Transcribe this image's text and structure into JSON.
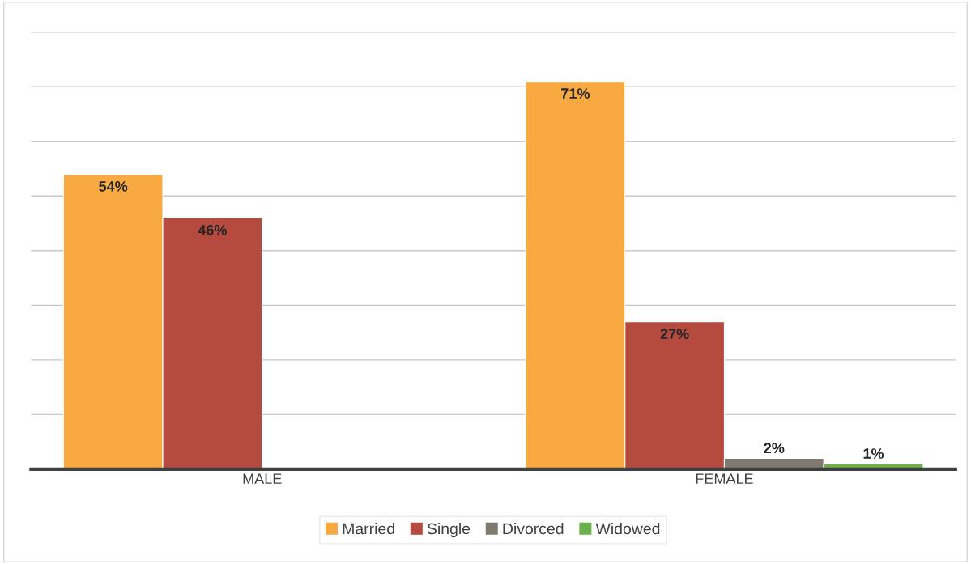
{
  "chart_data": {
    "type": "bar",
    "categories": [
      "MALE",
      "FEMALE"
    ],
    "series": [
      {
        "name": "Married",
        "color": "#f9a942",
        "values": [
          54,
          71
        ],
        "value_labels": [
          "54%",
          "71%"
        ]
      },
      {
        "name": "Single",
        "color": "#b54a3f",
        "values": [
          46,
          27
        ],
        "value_labels": [
          "46%",
          "27%"
        ]
      },
      {
        "name": "Divorced",
        "color": "#7f7a70",
        "values": [
          null,
          2
        ],
        "value_labels": [
          null,
          "2%"
        ]
      },
      {
        "name": "Widowed",
        "color": "#6ab04c",
        "values": [
          null,
          1
        ],
        "value_labels": [
          null,
          "1%"
        ]
      }
    ],
    "tick_labels": "x",
    "grid": "y",
    "legend": "bottom"
  }
}
